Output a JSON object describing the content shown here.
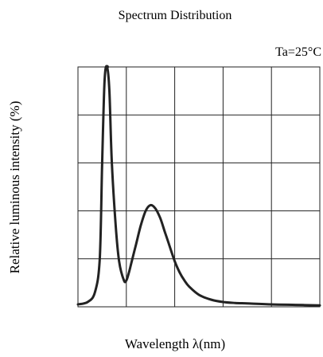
{
  "chart_data": {
    "type": "line",
    "title": "Spectrum Distribution",
    "annotation": "Ta=25°C",
    "xlabel": "Wavelength  λ(nm)",
    "ylabel": "Relative luminous intensity (%)",
    "xlim": [
      0,
      5
    ],
    "ylim": [
      0,
      5
    ],
    "grid": true,
    "line_color": "#222222",
    "series": [
      {
        "x": [
          0,
          0.2,
          0.35,
          0.45,
          0.5,
          0.55,
          0.6,
          0.65,
          0.7,
          0.78,
          0.85,
          0.95,
          1.0,
          1.05,
          1.1,
          1.2,
          1.3,
          1.4,
          1.5,
          1.6,
          1.7,
          1.8,
          1.9,
          2.0,
          2.1,
          2.2,
          2.3,
          2.5,
          2.75,
          3.0,
          3.25,
          3.5,
          4.0,
          4.5,
          5.0
        ],
        "y": [
          0.05,
          0.1,
          0.3,
          1.0,
          3.0,
          4.7,
          5.0,
          4.5,
          3.0,
          1.7,
          0.95,
          0.55,
          0.55,
          0.7,
          0.9,
          1.3,
          1.7,
          2.0,
          2.12,
          2.05,
          1.85,
          1.55,
          1.25,
          0.95,
          0.72,
          0.55,
          0.42,
          0.25,
          0.15,
          0.1,
          0.08,
          0.07,
          0.05,
          0.04,
          0.03
        ]
      }
    ]
  }
}
